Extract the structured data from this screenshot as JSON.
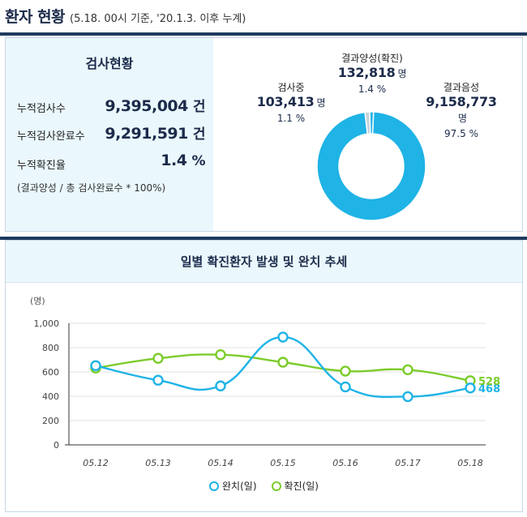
{
  "header": {
    "title": "환자 현황",
    "subtitle": "(5.18. 00시 기준, '20.1.3. 이후 누계)"
  },
  "stats": {
    "heading": "검사현황",
    "rows": [
      {
        "label": "누적검사수",
        "value": "9,395,004",
        "unit": "건"
      },
      {
        "label": "누적검사완료수",
        "value": "9,291,591",
        "unit": "건"
      },
      {
        "label": "누적확진율",
        "value": "1.4",
        "unit": "%"
      }
    ],
    "note": "(결과양성 / 총 검사완료수 * 100%)"
  },
  "donut": {
    "positive": {
      "label": "결과양성(확진)",
      "value": "132,818",
      "unit": "명",
      "pct": "1.4 %"
    },
    "testing": {
      "label": "검사중",
      "value": "103,413",
      "unit": "명",
      "pct": "1.1 %"
    },
    "negative": {
      "label": "결과음성",
      "value": "9,158,773",
      "unit": "명",
      "pct": "97.5 %"
    },
    "colors": {
      "negative": "#1fb3e6",
      "positive": "#c8d2dc",
      "testing": "#1fb3e6"
    }
  },
  "chart_data": {
    "type": "line",
    "title": "일별 확진환자 발생 및 완치 추세",
    "ylabel": "(명)",
    "ylim": [
      0,
      1000
    ],
    "yticks": [
      "0",
      "200",
      "400",
      "600",
      "800",
      "1,000"
    ],
    "categories": [
      "05.12",
      "05.13",
      "05.14",
      "05.15",
      "05.16",
      "05.17",
      "05.18"
    ],
    "series": [
      {
        "name": "완치(일)",
        "color": "#1fb3e6",
        "values": [
          652,
          532,
          485,
          887,
          477,
          397,
          468
        ]
      },
      {
        "name": "확진(일)",
        "color": "#7ccc2b",
        "values": [
          632,
          712,
          742,
          680,
          607,
          618,
          528
        ]
      }
    ],
    "end_labels": [
      {
        "series": 0,
        "text": "468"
      },
      {
        "series": 1,
        "text": "528"
      }
    ]
  }
}
